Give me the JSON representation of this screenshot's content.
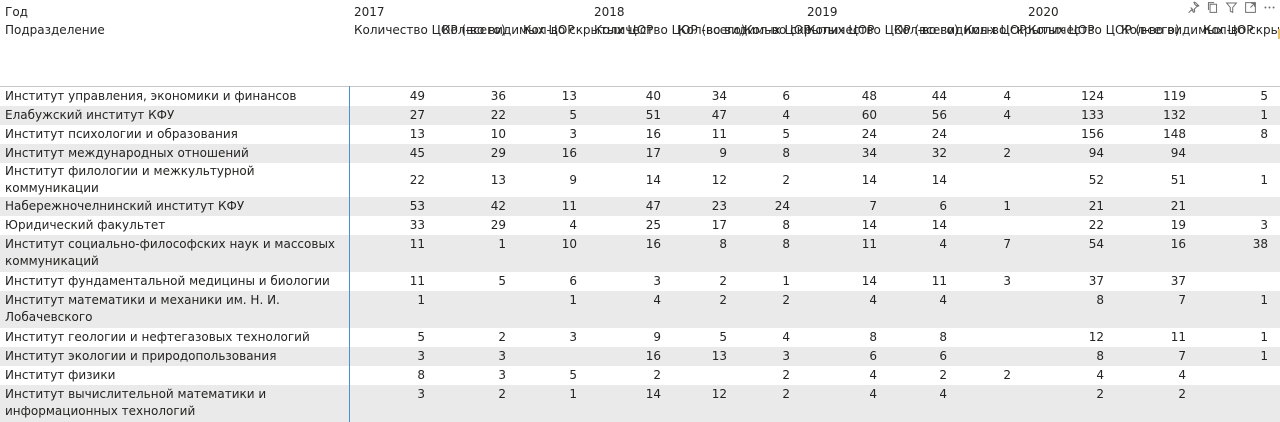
{
  "corner": {
    "year_label": "Год",
    "dept_label": "Подразделение"
  },
  "years": [
    "2017",
    "2018",
    "2019",
    "2020"
  ],
  "measures": [
    "Количество ЦОР (всего)",
    "Кол-во видимых ЦОР",
    "Кол-во скрытых ЦОР"
  ],
  "rows": [
    {
      "name": "Институт управления, экономики и финансов",
      "v": [
        "49",
        "36",
        "13",
        "40",
        "34",
        "6",
        "48",
        "44",
        "4",
        "124",
        "119",
        "5"
      ]
    },
    {
      "name": "Елабужский институт КФУ",
      "v": [
        "27",
        "22",
        "5",
        "51",
        "47",
        "4",
        "60",
        "56",
        "4",
        "133",
        "132",
        "1"
      ]
    },
    {
      "name": "Институт психологии и образования",
      "v": [
        "13",
        "10",
        "3",
        "16",
        "11",
        "5",
        "24",
        "24",
        "",
        "156",
        "148",
        "8"
      ]
    },
    {
      "name": "Институт международных отношений",
      "v": [
        "45",
        "29",
        "16",
        "17",
        "9",
        "8",
        "34",
        "32",
        "2",
        "94",
        "94",
        ""
      ]
    },
    {
      "name": "Институт филологии и межкультурной коммуникации",
      "v": [
        "22",
        "13",
        "9",
        "14",
        "12",
        "2",
        "14",
        "14",
        "",
        "52",
        "51",
        "1"
      ]
    },
    {
      "name": "Набережночелнинский институт КФУ",
      "v": [
        "53",
        "42",
        "11",
        "47",
        "23",
        "24",
        "7",
        "6",
        "1",
        "21",
        "21",
        ""
      ]
    },
    {
      "name": "Юридический факультет",
      "v": [
        "33",
        "29",
        "4",
        "25",
        "17",
        "8",
        "14",
        "14",
        "",
        "22",
        "19",
        "3"
      ]
    },
    {
      "name": "Институт социально-философских наук и массовых коммуникаций",
      "v": [
        "11",
        "1",
        "10",
        "16",
        "8",
        "8",
        "11",
        "4",
        "7",
        "54",
        "16",
        "38"
      ]
    },
    {
      "name": "Институт фундаментальной медицины и биологии",
      "v": [
        "11",
        "5",
        "6",
        "3",
        "2",
        "1",
        "14",
        "11",
        "3",
        "37",
        "37",
        ""
      ]
    },
    {
      "name": "Институт математики и механики им. Н. И. Лобачевского",
      "v": [
        "1",
        "",
        "1",
        "4",
        "2",
        "2",
        "4",
        "4",
        "",
        "8",
        "7",
        "1"
      ]
    },
    {
      "name": "Институт геологии и нефтегазовых технологий",
      "v": [
        "5",
        "2",
        "3",
        "9",
        "5",
        "4",
        "8",
        "8",
        "",
        "12",
        "11",
        "1"
      ]
    },
    {
      "name": "Институт экологии и природопользования",
      "v": [
        "3",
        "3",
        "",
        "16",
        "13",
        "3",
        "6",
        "6",
        "",
        "8",
        "7",
        "1"
      ]
    },
    {
      "name": "Институт физики",
      "v": [
        "8",
        "3",
        "5",
        "2",
        "",
        "2",
        "4",
        "2",
        "2",
        "4",
        "4",
        ""
      ]
    },
    {
      "name": "Институт вычислительной математики и информационных технологий",
      "v": [
        "3",
        "2",
        "1",
        "14",
        "12",
        "2",
        "4",
        "4",
        "",
        "2",
        "2",
        ""
      ]
    }
  ],
  "toolbar": {
    "icons": [
      "pin-icon",
      "copy-visual-icon",
      "filter-icon",
      "focus-mode-icon",
      "more-options-icon"
    ],
    "accent_color": "#4a90d6"
  }
}
